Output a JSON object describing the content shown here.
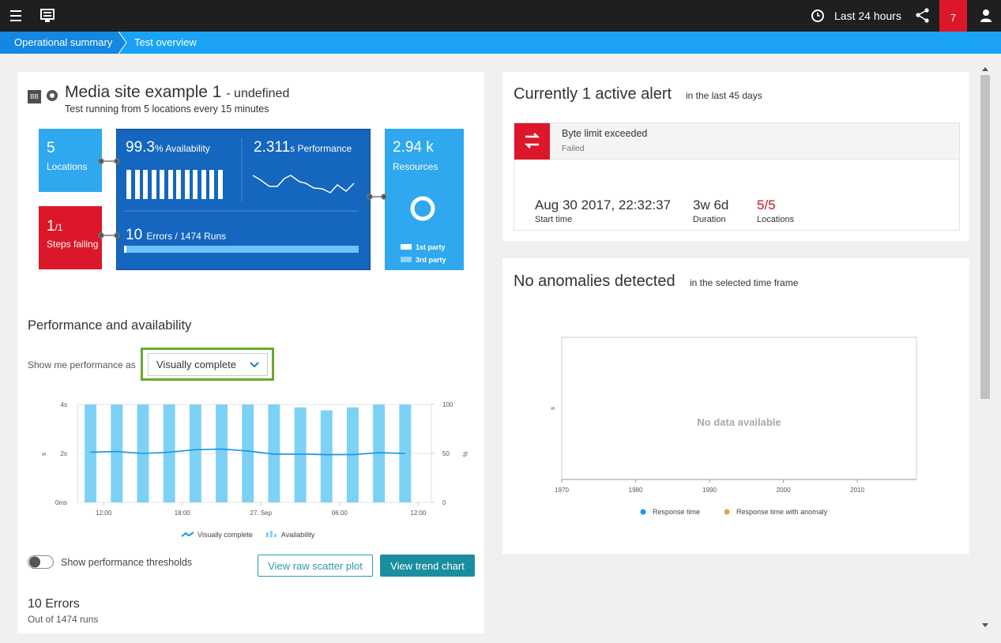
{
  "topbar": {
    "timeframe": "Last 24 hours",
    "notifications": "7"
  },
  "breadcrumb": [
    "Operational summary",
    "Test overview"
  ],
  "test": {
    "badge": "BB",
    "name": "Media site example 1",
    "name_suffix": "- undefined",
    "subtitle": "Test running from 5 locations every 15 minutes"
  },
  "tiles": {
    "locations": {
      "value": "5",
      "label": "Locations"
    },
    "steps": {
      "value": "1",
      "of": "/1",
      "label": "Steps failing"
    },
    "availability": {
      "value": "99.3",
      "unit": "% Availability"
    },
    "performance": {
      "value": "2.311",
      "unit": "s Performance"
    },
    "errors": {
      "value": "10",
      "label": "Errors / 1474 Runs"
    },
    "resources": {
      "value": "2.94 k",
      "label": "Resources",
      "legend": [
        "1st party",
        "3rd party"
      ]
    }
  },
  "perf_section": {
    "title": "Performance and availability",
    "show_as_label": "Show me performance as",
    "dropdown": "Visually complete",
    "thresholds_toggle": "Show performance thresholds",
    "buttons": [
      "View raw scatter plot",
      "View trend chart"
    ]
  },
  "errors": {
    "title": "10 Errors",
    "subtitle": "Out of 1474 runs"
  },
  "alerts": {
    "title": "Currently 1 active alert",
    "scope": "in the last 45 days",
    "alert": {
      "name": "Byte limit exceeded",
      "status": "Failed",
      "start_time": "Aug 30 2017, 22:32:37",
      "start_label": "Start time",
      "duration": "3w 6d",
      "duration_label": "Duration",
      "locations": "5/5",
      "locations_label": "Locations"
    }
  },
  "anomalies": {
    "title": "No anomalies detected",
    "scope": "in the selected time frame"
  },
  "chart_data": [
    {
      "type": "bar",
      "x": [
        -1,
        1,
        3,
        5,
        7,
        9,
        11,
        13,
        15,
        17,
        19,
        21,
        23
      ],
      "xlim": [
        -2,
        25
      ],
      "xticks": [
        {
          "value": 0,
          "label": "12:00"
        },
        {
          "value": 6,
          "label": "18:00"
        },
        {
          "value": 12,
          "label": "27. Sep"
        },
        {
          "value": 18,
          "label": "06:00"
        },
        {
          "value": 24,
          "label": "12:00"
        }
      ],
      "ylim": [
        0,
        4
      ],
      "yticks": [
        {
          "value": 0,
          "label": "0ms"
        },
        {
          "value": 2,
          "label": "2s"
        },
        {
          "value": 4,
          "label": "4s"
        }
      ],
      "y_label": "s",
      "y2lim": [
        0,
        100
      ],
      "y2ticks": [
        0,
        50,
        100
      ],
      "y2_label": "%",
      "grid": true,
      "series": [
        {
          "name": "Visually complete",
          "type": "line",
          "color": "#1496e6",
          "values": [
            2.05,
            2.08,
            2.0,
            2.05,
            2.15,
            2.18,
            2.1,
            1.97,
            1.97,
            1.95,
            1.95,
            2.03,
            2.0
          ]
        },
        {
          "name": "Availability",
          "type": "bar",
          "axis": "y2",
          "color": "#7dd1f5",
          "values": [
            100,
            100,
            100,
            100,
            100,
            100,
            100,
            100,
            97,
            94,
            97,
            100,
            100
          ]
        }
      ]
    },
    {
      "type": "line",
      "message": "No data available",
      "y_label": "s",
      "x": [],
      "xlim": [
        1970,
        2018
      ],
      "xticks": [
        1970,
        1980,
        1990,
        2000,
        2010
      ],
      "series": [
        {
          "name": "Response time",
          "color": "#1496ff",
          "values": []
        },
        {
          "name": "Response time with anomaly",
          "color": "#f0a040",
          "values": []
        }
      ]
    }
  ]
}
